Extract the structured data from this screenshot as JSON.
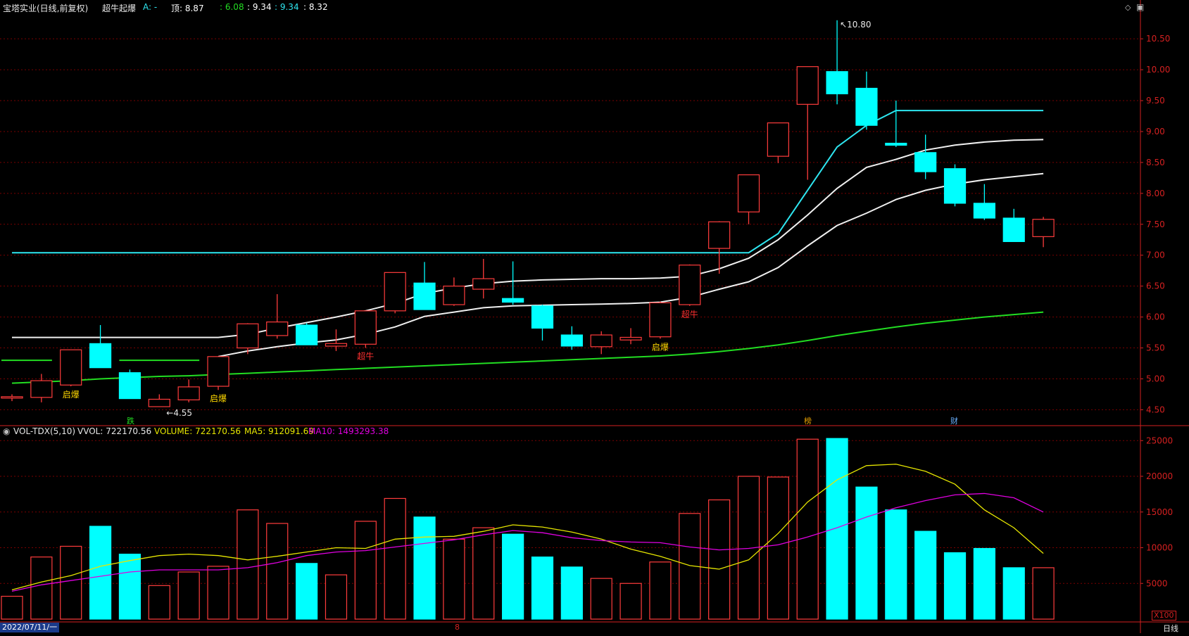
{
  "header": {
    "title": "宝塔实业(日线,前复权)",
    "indicator_name": "超牛起爆",
    "a_label": "A: -",
    "top_label": "顶: 8.87",
    "v1": ": 6.08",
    "v2": ": 9.34",
    "v3": ": 9.34",
    "v4": ": 8.32"
  },
  "vol_header": {
    "name": "VOL-TDX(5,10)",
    "vvol": "VVOL: 722170.56",
    "volume": "VOLUME: 722170.56",
    "ma5": "MA5: 912091.69",
    "ma10": "MA10: 1493293.38"
  },
  "footer": {
    "date": "2022/07/11/一",
    "month_marker": "8",
    "x100": "X100",
    "period": "日线"
  },
  "event_markers": [
    "跌",
    "榜",
    "财"
  ],
  "colors": {
    "up": "#ff3c3c",
    "down": "#00ffff",
    "ma_white": "#f0f0f0",
    "ma_green": "#22dd22",
    "vol_ma5": "#e6e600",
    "vol_ma10": "#e000e0",
    "grid": "#7a0000",
    "axis": "#d42020"
  },
  "chart_data": [
    {
      "type": "candlestick",
      "title": "宝塔实业(日线,前复权)",
      "ylim": [
        4.3,
        10.9
      ],
      "y_ticks": [
        "10.50",
        "10.00",
        "9.50",
        "9.00",
        "8.50",
        "8.00",
        "7.50",
        "7.00",
        "6.50",
        "6.00",
        "5.50",
        "5.00",
        "4.50"
      ],
      "candles": [
        {
          "o": 4.7,
          "h": 4.75,
          "l": 4.64,
          "c": 4.7
        },
        {
          "o": 4.7,
          "h": 5.08,
          "l": 4.62,
          "c": 4.97
        },
        {
          "o": 4.9,
          "h": 5.47,
          "l": 4.88,
          "c": 5.47
        },
        {
          "o": 5.57,
          "h": 5.87,
          "l": 5.2,
          "c": 5.18
        },
        {
          "o": 5.1,
          "h": 5.15,
          "l": 4.68,
          "c": 4.68
        },
        {
          "o": 4.55,
          "h": 4.75,
          "l": 4.55,
          "c": 4.67
        },
        {
          "o": 4.66,
          "h": 4.99,
          "l": 4.62,
          "c": 4.87
        },
        {
          "o": 4.88,
          "h": 5.35,
          "l": 4.82,
          "c": 5.36
        },
        {
          "o": 5.5,
          "h": 5.9,
          "l": 5.4,
          "c": 5.89
        },
        {
          "o": 5.7,
          "h": 6.37,
          "l": 5.65,
          "c": 5.92
        },
        {
          "o": 5.87,
          "h": 5.9,
          "l": 5.55,
          "c": 5.55
        },
        {
          "o": 5.54,
          "h": 5.8,
          "l": 5.45,
          "c": 5.56
        },
        {
          "o": 5.56,
          "h": 6.1,
          "l": 5.5,
          "c": 6.1
        },
        {
          "o": 6.1,
          "h": 6.72,
          "l": 6.06,
          "c": 6.72
        },
        {
          "o": 6.55,
          "h": 6.89,
          "l": 6.12,
          "c": 6.12
        },
        {
          "o": 6.2,
          "h": 6.64,
          "l": 6.18,
          "c": 6.5
        },
        {
          "o": 6.45,
          "h": 6.94,
          "l": 6.3,
          "c": 6.62
        },
        {
          "o": 6.3,
          "h": 6.9,
          "l": 6.2,
          "c": 6.24
        },
        {
          "o": 6.18,
          "h": 6.2,
          "l": 5.62,
          "c": 5.82
        },
        {
          "o": 5.71,
          "h": 5.85,
          "l": 5.47,
          "c": 5.53
        },
        {
          "o": 5.52,
          "h": 5.77,
          "l": 5.4,
          "c": 5.71
        },
        {
          "o": 5.64,
          "h": 5.82,
          "l": 5.56,
          "c": 5.66
        },
        {
          "o": 5.68,
          "h": 6.25,
          "l": 5.65,
          "c": 6.23
        },
        {
          "o": 6.2,
          "h": 6.85,
          "l": 6.18,
          "c": 6.84
        },
        {
          "o": 7.11,
          "h": 7.55,
          "l": 6.7,
          "c": 7.54
        },
        {
          "o": 7.7,
          "h": 8.3,
          "l": 7.5,
          "c": 8.3
        },
        {
          "o": 8.6,
          "h": 9.14,
          "l": 8.49,
          "c": 9.14
        },
        {
          "o": 9.44,
          "h": 10.05,
          "l": 8.22,
          "c": 10.05
        },
        {
          "o": 9.97,
          "h": 10.8,
          "l": 9.44,
          "c": 9.61
        },
        {
          "o": 9.7,
          "h": 9.97,
          "l": 9.03,
          "c": 9.1
        },
        {
          "o": 8.8,
          "h": 9.5,
          "l": 8.75,
          "c": 8.79
        },
        {
          "o": 8.66,
          "h": 8.95,
          "l": 8.23,
          "c": 8.35
        },
        {
          "o": 8.4,
          "h": 8.47,
          "l": 7.79,
          "c": 7.84
        },
        {
          "o": 7.84,
          "h": 8.15,
          "l": 7.57,
          "c": 7.6
        },
        {
          "o": 7.6,
          "h": 7.75,
          "l": 7.22,
          "c": 7.22
        },
        {
          "o": 7.3,
          "h": 7.62,
          "l": 7.13,
          "c": 7.58
        }
      ],
      "overlay_lines": [
        {
          "name": "cyan_step",
          "color": "#2ee6f0",
          "values": [
            7.04,
            7.04,
            7.04,
            7.04,
            7.04,
            7.04,
            7.04,
            7.04,
            7.04,
            7.04,
            7.04,
            7.04,
            7.04,
            7.04,
            7.04,
            7.04,
            7.04,
            7.04,
            7.04,
            7.04,
            7.04,
            7.04,
            7.04,
            7.04,
            7.04,
            7.04,
            7.35,
            8.05,
            8.75,
            9.1,
            9.34,
            9.34,
            9.34,
            9.34,
            9.34,
            9.34
          ]
        },
        {
          "name": "upper_white",
          "color": "#f0f0f0",
          "values": [
            5.67,
            5.67,
            5.67,
            5.67,
            5.67,
            5.67,
            5.67,
            5.67,
            5.72,
            5.82,
            5.91,
            6.0,
            6.1,
            6.22,
            6.38,
            6.47,
            6.54,
            6.58,
            6.6,
            6.61,
            6.62,
            6.62,
            6.63,
            6.66,
            6.78,
            6.95,
            7.25,
            7.65,
            8.08,
            8.42,
            8.55,
            8.7,
            8.78,
            8.83,
            8.86,
            8.87
          ]
        },
        {
          "name": "lower_white",
          "color": "#f0f0f0",
          "values": [
            null,
            null,
            null,
            null,
            null,
            null,
            null,
            5.36,
            5.45,
            5.52,
            5.58,
            5.63,
            5.72,
            5.84,
            6.01,
            6.08,
            6.15,
            6.18,
            6.19,
            6.2,
            6.21,
            6.22,
            6.24,
            6.32,
            6.45,
            6.57,
            6.8,
            7.15,
            7.48,
            7.68,
            7.9,
            8.05,
            8.15,
            8.22,
            8.27,
            8.32
          ]
        },
        {
          "name": "green_ma",
          "color": "#22dd22",
          "values": [
            4.93,
            4.95,
            4.97,
            5.0,
            5.02,
            5.04,
            5.05,
            5.07,
            5.09,
            5.11,
            5.13,
            5.15,
            5.17,
            5.19,
            5.21,
            5.23,
            5.25,
            5.27,
            5.29,
            5.31,
            5.33,
            5.35,
            5.37,
            5.4,
            5.44,
            5.49,
            5.55,
            5.62,
            5.7,
            5.77,
            5.84,
            5.9,
            5.95,
            6.0,
            6.04,
            6.08
          ]
        }
      ],
      "green_segments": [
        {
          "from": 0,
          "to": 1,
          "y": 5.3
        },
        {
          "from": 4,
          "to": 6,
          "y": 5.3
        }
      ],
      "signal_labels": [
        {
          "i": 2,
          "text": "启爆",
          "color": "#ffd800"
        },
        {
          "i": 7,
          "text": "启爆",
          "color": "#ffd800"
        },
        {
          "i": 12,
          "text": "超牛",
          "color": "#ff3030"
        },
        {
          "i": 22,
          "text": "启爆",
          "color": "#ffd800"
        },
        {
          "i": 23,
          "text": "超牛",
          "color": "#ff3030"
        }
      ],
      "annotations": [
        {
          "i": 28,
          "text": "10.80"
        },
        {
          "i": 5,
          "text": "4.55"
        }
      ]
    },
    {
      "type": "bar",
      "title": "VOL-TDX(5,10)",
      "unit_label": "X100",
      "ylim": [
        0,
        26800
      ],
      "y_ticks": [
        "25000",
        "20000",
        "15000",
        "10000",
        "5000"
      ],
      "volumes": [
        3200,
        8700,
        10200,
        13000,
        9100,
        4700,
        6600,
        7400,
        15300,
        13400,
        7800,
        6200,
        13700,
        16900,
        14300,
        11200,
        12800,
        11900,
        8700,
        7300,
        5700,
        5000,
        8000,
        14800,
        16700,
        20000,
        19900,
        25200,
        25300,
        18500,
        15300,
        12300,
        9300,
        9900,
        7200,
        7200
      ],
      "ma5": [
        4100,
        5200,
        6100,
        7400,
        8200,
        8900,
        9100,
        8900,
        8300,
        8800,
        9400,
        10000,
        9900,
        11200,
        11500,
        11600,
        12300,
        13200,
        12900,
        12200,
        11200,
        9800,
        8800,
        7500,
        7000,
        8300,
        12000,
        16400,
        19500,
        21500,
        21700,
        20700,
        18900,
        15300,
        12800,
        9200
      ],
      "ma10": [
        3900,
        4800,
        5400,
        6000,
        6600,
        6900,
        6900,
        6900,
        7200,
        7900,
        8900,
        9400,
        9600,
        10100,
        10600,
        11100,
        11800,
        12400,
        12100,
        11400,
        11000,
        10800,
        10700,
        10100,
        9700,
        9900,
        10400,
        11500,
        12800,
        14300,
        15600,
        16600,
        17400,
        17600,
        17000,
        15000
      ]
    }
  ]
}
